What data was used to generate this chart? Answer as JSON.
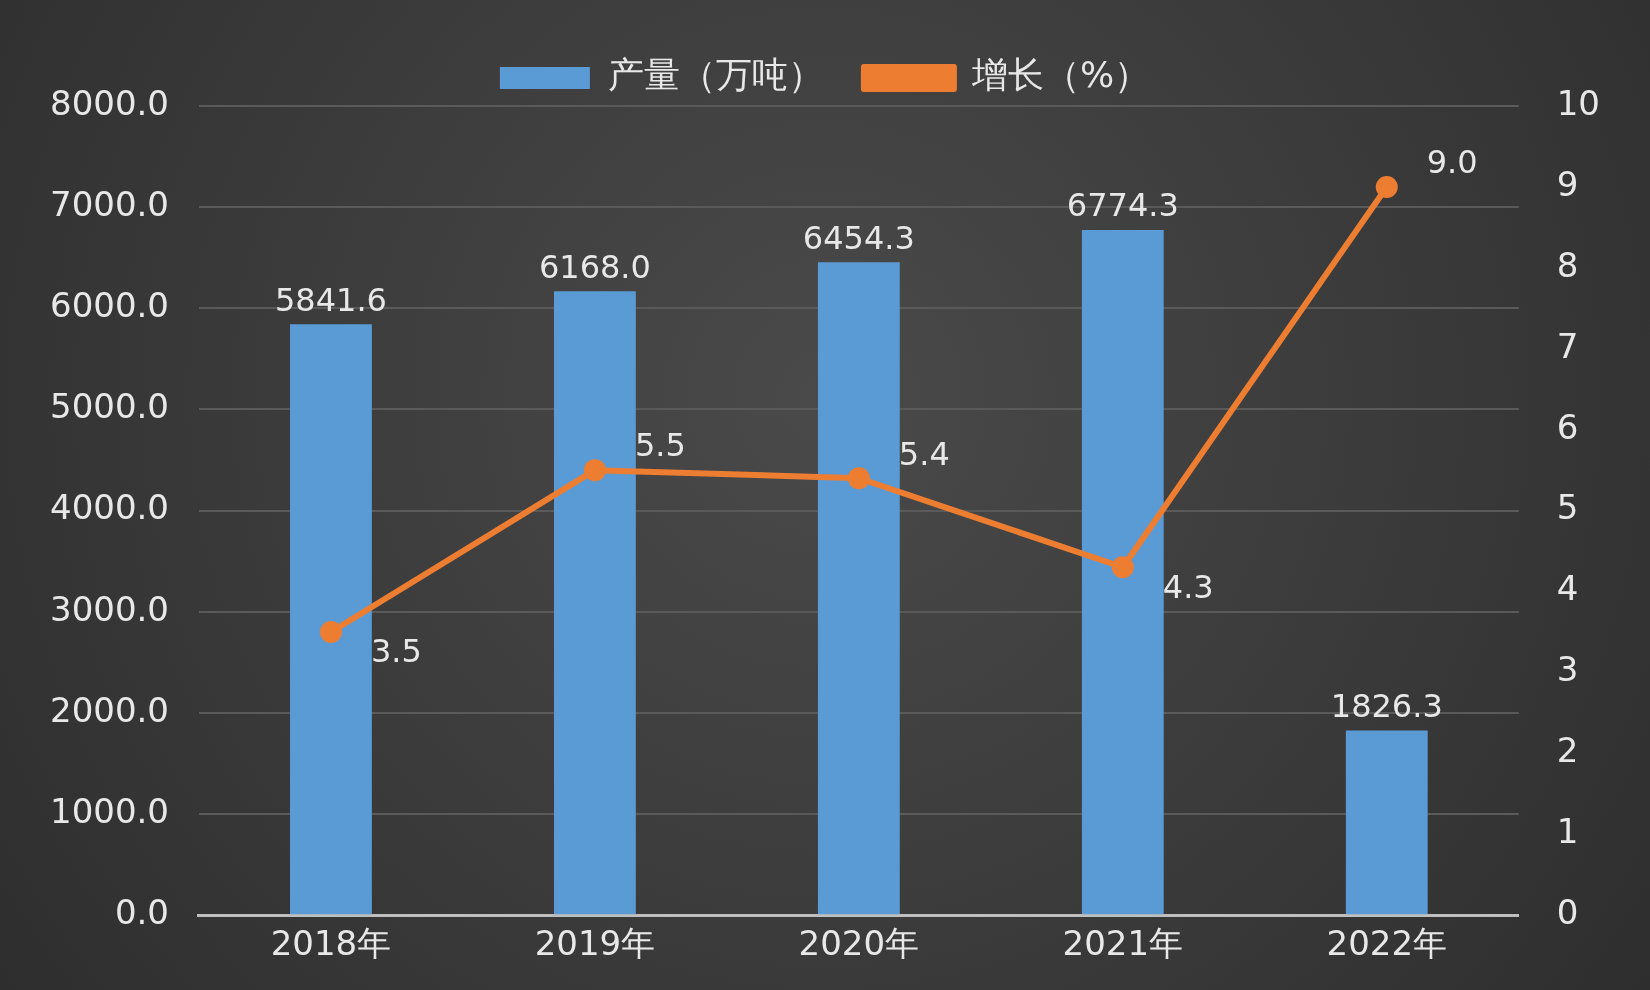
{
  "chart_data": {
    "type": "bar",
    "categories": [
      "2018年",
      "2019年",
      "2020年",
      "2021年",
      "2022年"
    ],
    "series": [
      {
        "name": "产量（万吨）",
        "color": "#5b9bd5",
        "values": [
          5841.6,
          6168.0,
          6454.3,
          6774.3,
          1826.3
        ],
        "value_labels": [
          "5841.6",
          "6168.0",
          "6454.3",
          "6774.3",
          "1826.3"
        ]
      },
      {
        "name": "增长（%）",
        "type": "line",
        "axis": "y2",
        "color": "#ed7d31",
        "values": [
          3.5,
          5.5,
          5.4,
          4.3,
          9.0
        ],
        "value_labels": [
          "3.5",
          "5.5",
          "5.4",
          "4.3",
          "9.0"
        ]
      }
    ],
    "ylim": [
      0,
      8000
    ],
    "yticks": [
      {
        "value": 0,
        "label": "0.0"
      },
      {
        "value": 1000,
        "label": "1000.0"
      },
      {
        "value": 2000,
        "label": "2000.0"
      },
      {
        "value": 3000,
        "label": "3000.0"
      },
      {
        "value": 4000,
        "label": "4000.0"
      },
      {
        "value": 5000,
        "label": "5000.0"
      },
      {
        "value": 6000,
        "label": "6000.0"
      },
      {
        "value": 7000,
        "label": "7000.0"
      },
      {
        "value": 8000,
        "label": "8000.0"
      }
    ],
    "y2lim": [
      0,
      10
    ],
    "y2ticks": [
      0,
      1,
      2,
      3,
      4,
      5,
      6,
      7,
      8,
      9,
      10
    ],
    "grid": "y",
    "legend": "top",
    "marker": "circle",
    "line_style": "solid"
  }
}
